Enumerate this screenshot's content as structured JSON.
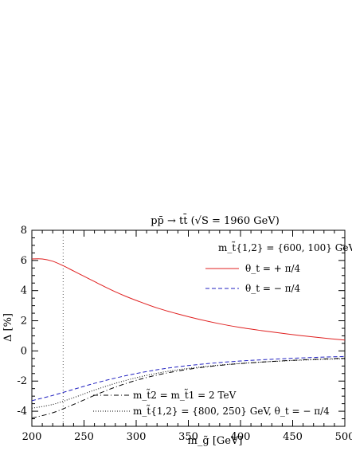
{
  "chart_data": {
    "type": "line",
    "title": "pp̄ → tt̄  (√S = 1960 GeV)",
    "xlabel": "m_g̃ [GeV]",
    "ylabel": "Δ [%]",
    "xlim": [
      200,
      500
    ],
    "ylim": [
      -5,
      8
    ],
    "xticks": [
      200,
      250,
      300,
      350,
      400,
      450,
      500
    ],
    "yticks": [
      -4,
      -2,
      0,
      2,
      4,
      6,
      8
    ],
    "grid": false,
    "reference_line_x": 230,
    "legend_header": "m_t̃{1,2} = {600, 100} GeV",
    "series": [
      {
        "name": "θ_t = + π/4",
        "color": "#e02020",
        "dash": "solid",
        "x": [
          200,
          210,
          220,
          230,
          240,
          250,
          260,
          270,
          280,
          290,
          300,
          320,
          340,
          360,
          380,
          400,
          420,
          440,
          460,
          480,
          500
        ],
        "y": [
          6.1,
          6.1,
          5.95,
          5.65,
          5.3,
          4.95,
          4.6,
          4.25,
          3.92,
          3.62,
          3.35,
          2.85,
          2.45,
          2.1,
          1.8,
          1.55,
          1.35,
          1.17,
          1.0,
          0.85,
          0.72
        ]
      },
      {
        "name": "θ_t = − π/4",
        "color": "#2020c0",
        "dash": "dashed",
        "x": [
          200,
          220,
          240,
          260,
          280,
          300,
          320,
          340,
          360,
          380,
          400,
          420,
          440,
          460,
          480,
          500
        ],
        "y": [
          -3.3,
          -2.95,
          -2.55,
          -2.15,
          -1.8,
          -1.5,
          -1.25,
          -1.05,
          -0.9,
          -0.77,
          -0.67,
          -0.59,
          -0.52,
          -0.46,
          -0.41,
          -0.37
        ]
      },
      {
        "name": "m_t̃2 = m_t̃1 = 2 TeV",
        "color": "#000000",
        "dash": "dashdot",
        "x": [
          200,
          220,
          240,
          260,
          280,
          300,
          320,
          340,
          360,
          380,
          400,
          420,
          440,
          460,
          480,
          500
        ],
        "y": [
          -4.45,
          -4.1,
          -3.55,
          -2.95,
          -2.4,
          -1.95,
          -1.6,
          -1.33,
          -1.12,
          -0.96,
          -0.84,
          -0.74,
          -0.66,
          -0.59,
          -0.53,
          -0.48
        ]
      },
      {
        "name": "m_t̃{1,2} = {800, 250} GeV,  θ_t = − π/4",
        "color": "#000000",
        "dash": "dotted",
        "x": [
          200,
          220,
          240,
          260,
          280,
          300,
          320,
          340,
          360,
          380,
          400,
          420,
          440,
          460,
          480,
          500
        ],
        "y": [
          -3.8,
          -3.55,
          -3.1,
          -2.6,
          -2.15,
          -1.78,
          -1.48,
          -1.25,
          -1.08,
          -0.94,
          -0.83,
          -0.74,
          -0.67,
          -0.61,
          -0.56,
          -0.52
        ]
      }
    ]
  }
}
